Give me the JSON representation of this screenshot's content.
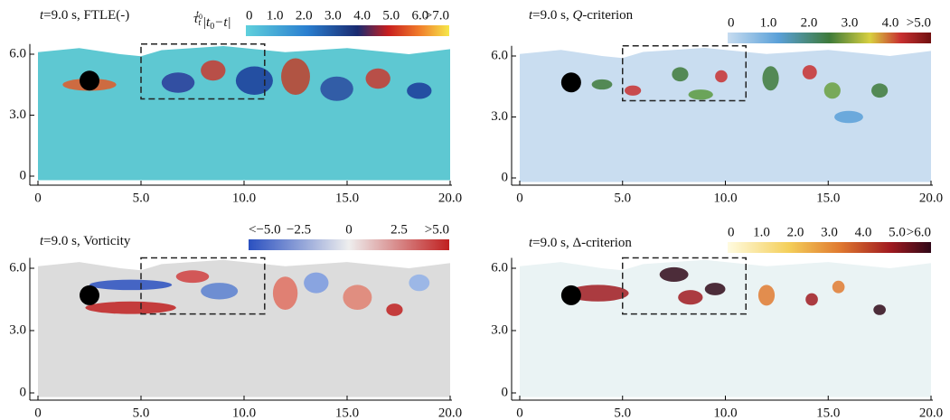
{
  "panels": [
    {
      "title": [
        {
          "text": "t"
        },
        {
          "text": "=9.0 s, FTLE(-)"
        }
      ],
      "colorbar_label": [
        "τ",
        "t",
        "t",
        "0",
        "|t",
        "0",
        "−t|"
      ],
      "colorbar_ticks": [
        "0",
        "1.0",
        "2.0",
        "3.0",
        "4.0",
        "5.0",
        "6.0",
        ">7.0"
      ],
      "x_ticks": [
        "0",
        "5.0",
        "10.0",
        "15.0",
        "20.0"
      ],
      "y_ticks": [
        "0",
        "3.0",
        "6.0"
      ]
    },
    {
      "title": [
        {
          "text": "t"
        },
        {
          "text": "=9.0 s, "
        },
        {
          "text": "Q"
        },
        {
          "text": "-criterion"
        }
      ],
      "colorbar_ticks": [
        "0",
        "1.0",
        "2.0",
        "3.0",
        "4.0",
        ">5.0"
      ],
      "x_ticks": [
        "0",
        "5.0",
        "10.0",
        "15.0",
        "20.0"
      ],
      "y_ticks": [
        "0",
        "3.0",
        "6.0"
      ]
    },
    {
      "title": [
        {
          "text": "t"
        },
        {
          "text": "=9.0 s, Vorticity"
        }
      ],
      "colorbar_ticks": [
        "<−5.0",
        "−2.5",
        "0",
        "2.5",
        ">5.0"
      ],
      "x_ticks": [
        "0",
        "5.0",
        "10.0",
        "15.0",
        "20.0"
      ],
      "y_ticks": [
        "0",
        "3.0",
        "6.0"
      ]
    },
    {
      "title": [
        {
          "text": "t"
        },
        {
          "text": "=9.0 s, Δ-criterion"
        }
      ],
      "colorbar_ticks": [
        "0",
        "1.0",
        "2.0",
        "3.0",
        "4.0",
        "5.0",
        ">6.0"
      ],
      "x_ticks": [
        "0",
        "5.0",
        "10.0",
        "15.0",
        "20.0"
      ],
      "y_ticks": [
        "0",
        "3.0",
        "6.0"
      ]
    }
  ]
}
